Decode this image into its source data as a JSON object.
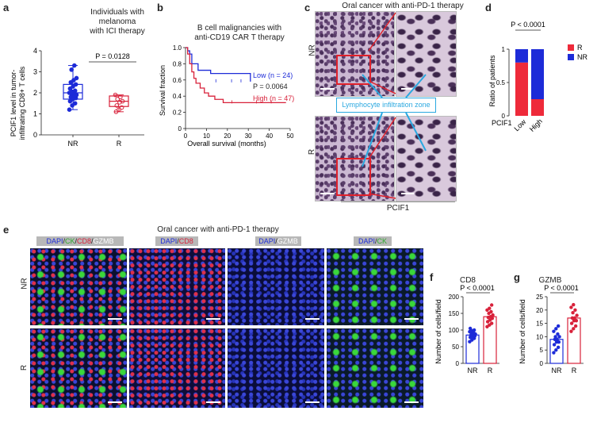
{
  "panel_labels": {
    "a": "a",
    "b": "b",
    "c": "c",
    "d": "d",
    "e": "e",
    "f": "f",
    "g": "g"
  },
  "panel_a": {
    "title_l1": "Individuals with",
    "title_l2": "melanoma",
    "title_l3": "with ICI therapy",
    "ylabel_l1": "PCIF1 level in tumor-",
    "ylabel_l2": "infiltrating CD8+ T cells",
    "pvalue": "P = 0.0128",
    "chart_data": {
      "type": "box",
      "categories": [
        "NR",
        "R"
      ],
      "ylim": [
        0,
        4
      ],
      "yticks": [
        "0",
        "1",
        "2",
        "3",
        "4"
      ],
      "series": [
        {
          "name": "NR",
          "color": "#1d2bd8",
          "median": 2.0,
          "q1": 1.7,
          "q3": 2.4,
          "min": 1.2,
          "max": 3.3,
          "points": [
            1.2,
            1.4,
            1.5,
            1.6,
            1.7,
            1.75,
            1.8,
            1.85,
            1.9,
            1.95,
            2.0,
            2.0,
            2.05,
            2.1,
            2.2,
            2.3,
            2.4,
            2.5,
            2.6,
            2.7,
            3.1,
            3.3
          ]
        },
        {
          "name": "R",
          "color": "#d8213a",
          "median": 1.6,
          "q1": 1.35,
          "q3": 1.85,
          "min": 1.1,
          "max": 1.9,
          "points": [
            1.1,
            1.2,
            1.3,
            1.4,
            1.55,
            1.6,
            1.7,
            1.8,
            1.9
          ]
        }
      ]
    }
  },
  "panel_b": {
    "title_l1": "B cell malignancies with",
    "title_l2": "anti-CD19 CAR T therapy",
    "ylabel": "Survival fraction",
    "xlabel": "Overall survival (months)",
    "legend_low": "Low (n = 24)",
    "legend_p": "P = 0.0064",
    "legend_high": "High (n = 47)",
    "chart_data": {
      "type": "line",
      "xlim": [
        0,
        50
      ],
      "ylim": [
        0,
        1.0
      ],
      "xticks": [
        "0",
        "10",
        "20",
        "30",
        "40",
        "50"
      ],
      "yticks": [
        "0",
        "0.2",
        "0.4",
        "0.6",
        "0.8",
        "1.0"
      ],
      "series": [
        {
          "name": "Low",
          "color": "#1d2bd8",
          "x": [
            0,
            1,
            1,
            2,
            2,
            3,
            3,
            6,
            6,
            12,
            12,
            31,
            31
          ],
          "y": [
            1,
            1,
            0.96,
            0.96,
            0.92,
            0.92,
            0.8,
            0.8,
            0.72,
            0.72,
            0.68,
            0.68,
            0.58
          ]
        },
        {
          "name": "High",
          "color": "#d8213a",
          "x": [
            0,
            1,
            1,
            2,
            2,
            3,
            3,
            4,
            4,
            5,
            5,
            7,
            7,
            9,
            9,
            11,
            11,
            14,
            14,
            18,
            18,
            48
          ],
          "y": [
            1,
            1,
            0.92,
            0.92,
            0.8,
            0.8,
            0.7,
            0.7,
            0.62,
            0.62,
            0.56,
            0.56,
            0.5,
            0.5,
            0.44,
            0.44,
            0.4,
            0.4,
            0.36,
            0.36,
            0.32,
            0.32
          ]
        }
      ]
    }
  },
  "panel_c": {
    "title": "Oral cancer with anti-PD-1 therapy",
    "row_nr": "NR",
    "row_r": "R",
    "zone_label": "Lymphocyte infiltration zone",
    "xlabel": "PCIF1"
  },
  "panel_d": {
    "ylabel": "Ratio of patients",
    "pvalue": "P < 0.0001",
    "row_label": "PCIF1",
    "legend": [
      {
        "name": "R",
        "color": "#ee2a3a"
      },
      {
        "name": "NR",
        "color": "#1d2bd8"
      }
    ],
    "chart_data": {
      "type": "bar",
      "stacked": true,
      "categories": [
        "Low",
        "High"
      ],
      "ylim": [
        0,
        1
      ],
      "yticks": [
        "0",
        "0.5",
        "1"
      ],
      "series": [
        {
          "name": "R",
          "color": "#ee2a3a",
          "values": [
            0.8,
            0.25
          ]
        },
        {
          "name": "NR",
          "color": "#1d2bd8",
          "values": [
            0.2,
            0.75
          ]
        }
      ]
    }
  },
  "panel_e": {
    "title": "Oral cancer with anti-PD-1 therapy",
    "row_nr": "NR",
    "row_r": "R",
    "chips": {
      "merge_dapi": "DAPI",
      "merge_ck": "CK",
      "merge_cd8": "CD8",
      "merge_gzmb": "GZMB",
      "c2_dapi": "DAPI",
      "c2_cd8": "CD8",
      "c3_dapi": "DAPI",
      "c3_gzmb": "GZMB",
      "c4_dapi": "DAPI",
      "c4_ck": "CK",
      "sep": "/"
    }
  },
  "panel_f": {
    "title": "CD8",
    "ylabel": "Number of cells/field",
    "pvalue": "P < 0.0001",
    "chart_data": {
      "type": "bar",
      "categories": [
        "NR",
        "R"
      ],
      "ylim": [
        0,
        200
      ],
      "yticks": [
        "0",
        "50",
        "100",
        "150",
        "200"
      ],
      "values": [
        85,
        140
      ],
      "points": {
        "NR": [
          65,
          70,
          75,
          78,
          80,
          82,
          84,
          86,
          88,
          90,
          92,
          95,
          98,
          100,
          105
        ],
        "R": [
          110,
          115,
          120,
          125,
          130,
          135,
          138,
          140,
          145,
          150,
          155,
          160,
          165,
          175
        ]
      }
    }
  },
  "panel_g": {
    "title": "GZMB",
    "ylabel": "Number of cells/field",
    "pvalue": "P < 0.0001",
    "chart_data": {
      "type": "bar",
      "categories": [
        "NR",
        "R"
      ],
      "ylim": [
        0,
        25
      ],
      "yticks": [
        "0",
        "5",
        "10",
        "15",
        "20",
        "25"
      ],
      "values": [
        9,
        17
      ],
      "points": {
        "NR": [
          4,
          5,
          6,
          7,
          8,
          8,
          9,
          9,
          10,
          10,
          11,
          12,
          13,
          14
        ],
        "R": [
          12,
          13,
          14,
          15,
          16,
          16,
          17,
          17,
          18,
          19,
          20,
          21,
          22
        ]
      }
    }
  }
}
